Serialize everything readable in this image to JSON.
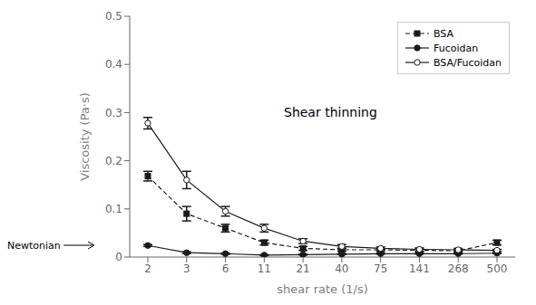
{
  "chart_data": {
    "type": "line",
    "x_label": "shear rate (1/s)",
    "y_label": "Viscosity (Pa·s)",
    "categories": [
      2,
      3,
      6,
      11,
      21,
      40,
      75,
      141,
      268,
      500
    ],
    "series": [
      {
        "name": "BSA",
        "color": "#1a1a1a",
        "marker": "square",
        "line_style": "dashed",
        "values": [
          0.168,
          0.09,
          0.06,
          0.03,
          0.018,
          0.015,
          0.015,
          0.014,
          0.013,
          0.03
        ],
        "errors": [
          0.01,
          0.015,
          0.008,
          0.005,
          0.004,
          0.003,
          0.003,
          0.003,
          0.003,
          0.005
        ]
      },
      {
        "name": "Fucoidan",
        "color": "#1a1a1a",
        "marker": "circle",
        "line_style": "solid",
        "values": [
          0.024,
          0.009,
          0.007,
          0.004,
          0.005,
          0.006,
          0.007,
          0.007,
          0.007,
          0.008
        ],
        "errors": [
          0.002,
          0.002,
          0.001,
          0.001,
          0.001,
          0.001,
          0.001,
          0.001,
          0.001,
          0.001
        ]
      },
      {
        "name": "BSA/Fucoidan",
        "color": "#1a1a1a",
        "marker": "open-circle",
        "line_style": "solid",
        "values": [
          0.278,
          0.16,
          0.095,
          0.06,
          0.033,
          0.022,
          0.018,
          0.016,
          0.015,
          0.014
        ],
        "errors": [
          0.012,
          0.018,
          0.01,
          0.008,
          0.005,
          0.004,
          0.003,
          0.003,
          0.003,
          0.002
        ]
      }
    ],
    "ylim": [
      0,
      0.5
    ],
    "yticks": [
      0,
      0.1,
      0.2,
      0.3,
      0.4,
      0.5
    ],
    "annotations": [
      "Shear thinning",
      "Newtonian"
    ],
    "grid": false,
    "legend": "upper right"
  }
}
